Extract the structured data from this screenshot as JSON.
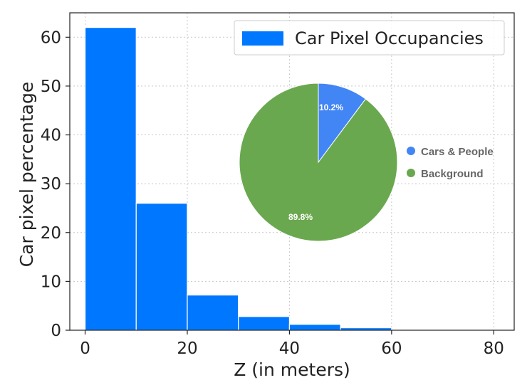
{
  "chart_data": [
    {
      "type": "bar",
      "xlabel": "Z (in meters)",
      "ylabel": "Car pixel percentage",
      "xlim": [
        -3,
        84
      ],
      "ylim": [
        0,
        65
      ],
      "bin_width": 10,
      "x": [
        0,
        10,
        20,
        30,
        40,
        50,
        60,
        70
      ],
      "values": [
        62.0,
        26.0,
        7.2,
        2.8,
        1.2,
        0.5,
        0.15,
        0.05
      ],
      "x_ticks": [
        0,
        20,
        40,
        60,
        80
      ],
      "y_ticks": [
        0,
        10,
        20,
        30,
        40,
        50,
        60
      ],
      "grid": true,
      "legend": {
        "placement": "top-right",
        "entries": [
          {
            "label": "Car Pixel Occupancies",
            "color": "#0077ff"
          }
        ]
      },
      "bar_color": "#0077ff"
    },
    {
      "type": "pie",
      "slices": [
        {
          "label": "Cars & People",
          "value": 10.2,
          "value_label": "10.2%",
          "color": "#4285f4"
        },
        {
          "label": "Background",
          "value": 89.8,
          "value_label": "89.8%",
          "color": "#6aa84f"
        }
      ],
      "legend": {
        "placement": "right",
        "entries": [
          "Cars & People",
          "Background"
        ]
      }
    }
  ]
}
